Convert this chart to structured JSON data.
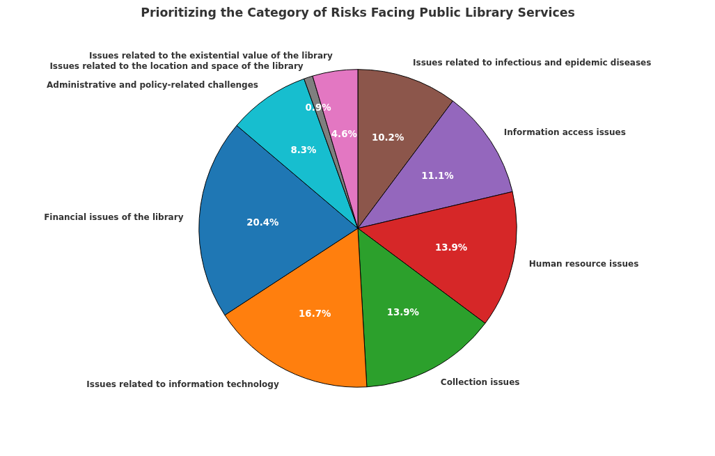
{
  "chart_data": {
    "type": "pie",
    "title": "Prioritizing the Category of Risks Facing Public Library Services",
    "categories": [
      "Issues related to infectious and epidemic diseases",
      "Information access issues",
      "Human resource issues",
      "Collection issues",
      "Issues related to information technology",
      "Financial issues of the library",
      "Administrative and policy-related challenges",
      "Issues related to the location and space of the library",
      "Issues related to the existential value of the library"
    ],
    "values": [
      10.2,
      11.1,
      13.9,
      13.9,
      16.7,
      20.4,
      8.3,
      0.9,
      4.6
    ],
    "colors": [
      "#8c564b",
      "#9467bd",
      "#d62728",
      "#2ca02c",
      "#ff7f0e",
      "#1f77b4",
      "#17becf",
      "#7f7f7f",
      "#e377c2"
    ],
    "value_labels": [
      "10.2%",
      "11.1%",
      "13.9%",
      "13.9%",
      "16.7%",
      "20.4%",
      "8.3%",
      "0.9%",
      "4.6%"
    ],
    "legend": false
  }
}
